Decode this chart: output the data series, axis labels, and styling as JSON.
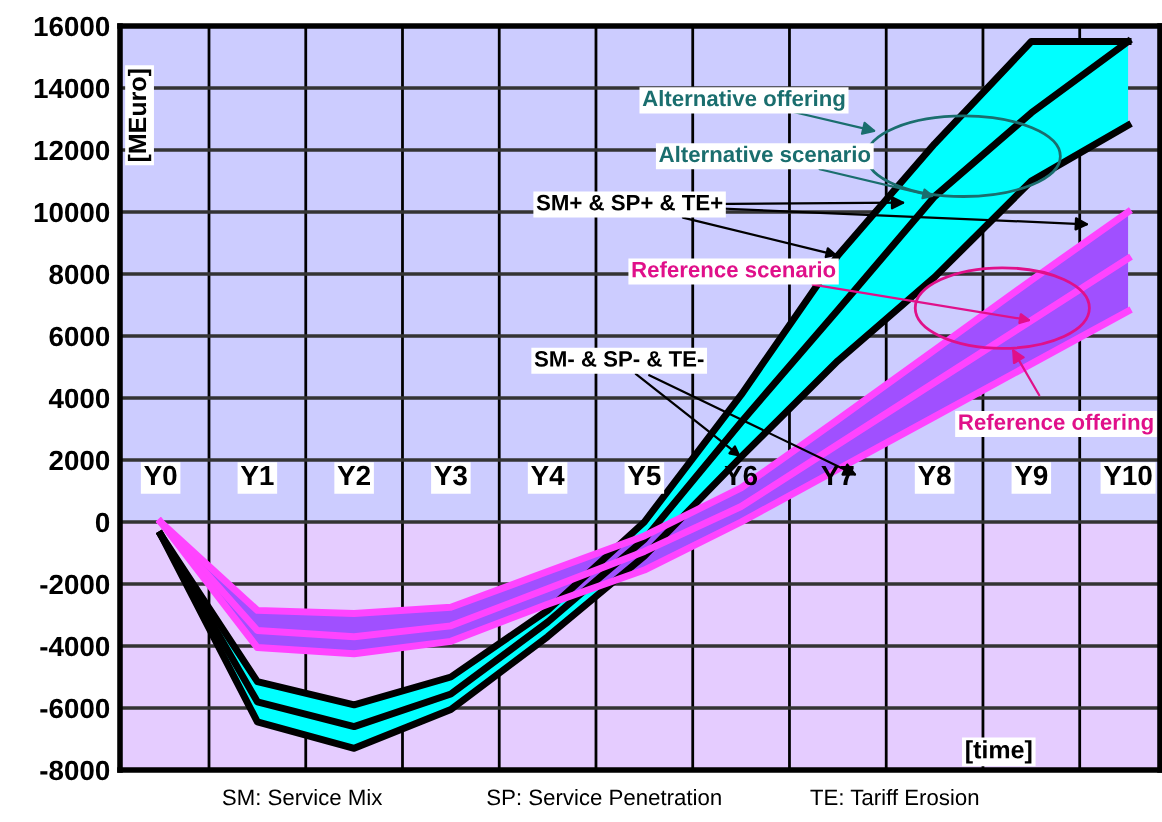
{
  "chart_data": {
    "type": "line",
    "xlabel": "[time]",
    "ylabel": "[MEuro]",
    "categories": [
      "Y0",
      "Y1",
      "Y2",
      "Y3",
      "Y4",
      "Y5",
      "Y6",
      "Y7",
      "Y8",
      "Y9",
      "Y10"
    ],
    "series": [
      {
        "color": "#000000",
        "values": [
          -400,
          -5800,
          -6600,
          -5550,
          -3230,
          -560,
          3220,
          6840,
          10500,
          13200,
          15500
        ],
        "lower": [
          -400,
          -6450,
          -7300,
          -6050,
          -3700,
          -1100,
          2100,
          5200,
          7900,
          11000,
          12800
        ],
        "upper": [
          -400,
          -5150,
          -5900,
          -5000,
          -2850,
          0,
          4100,
          8600,
          12200,
          15500,
          15500
        ]
      },
      {
        "color": "#000000",
        "values": [
          -400,
          -6450,
          -7300,
          -6050,
          -3700,
          -1100,
          2100,
          5200,
          7900,
          11000,
          12800
        ]
      },
      {
        "color": "#000000",
        "values": [
          -400,
          -5150,
          -5900,
          -5000,
          -2850,
          0,
          4100,
          8600,
          12200,
          15500,
          15500
        ]
      },
      {
        "color": "#ff44ff",
        "values": [
          0,
          -3500,
          -3700,
          -3350,
          -2150,
          -950,
          500,
          2500,
          4500,
          6500,
          8500
        ],
        "lower": [
          0,
          -4050,
          -4250,
          -3850,
          -2650,
          -1550,
          0,
          1700,
          3400,
          5100,
          6800
        ],
        "upper": [
          0,
          -2850,
          -2950,
          -2750,
          -1600,
          -450,
          1100,
          3300,
          5550,
          7800,
          10000
        ]
      },
      {
        "color": "#ff44ff",
        "values": [
          0,
          -4050,
          -4250,
          -3850,
          -2650,
          -1550,
          0,
          1700,
          3400,
          5100,
          6800
        ]
      },
      {
        "color": "#ff44ff",
        "values": [
          0,
          -2850,
          -2950,
          -2750,
          -1600,
          -450,
          1100,
          3300,
          5550,
          7800,
          10000
        ]
      }
    ],
    "ylim": [
      -8000,
      16000
    ],
    "yticks": [
      -8000,
      -6000,
      -4000,
      -2000,
      0,
      2000,
      4000,
      6000,
      8000,
      10000,
      12000,
      14000,
      16000
    ],
    "bands": [
      {
        "axis": "y",
        "from": 0,
        "to": 16000,
        "color": "#ccccff"
      },
      {
        "axis": "y",
        "from": -8000,
        "to": 0,
        "color": "#e5ccff"
      }
    ],
    "grid": true,
    "marker": "none",
    "line_style": "solid",
    "annotations": [
      "Alternative offering",
      {
        "text": "Alternative scenario",
        "x": "Y8",
        "y": 10500
      },
      {
        "text": "SM+ & SP+ & TE+",
        "x": "Y7",
        "y": 8600
      },
      {
        "text": "Reference scenario",
        "x": "Y9",
        "y": 6500
      },
      "Reference offering",
      {
        "text": "SM- & SP- & TE-",
        "x": "Y6",
        "y": 2100
      },
      "SM: Service Mix",
      "SP: Service Penetration",
      "TE: Tariff Erosion"
    ]
  }
}
